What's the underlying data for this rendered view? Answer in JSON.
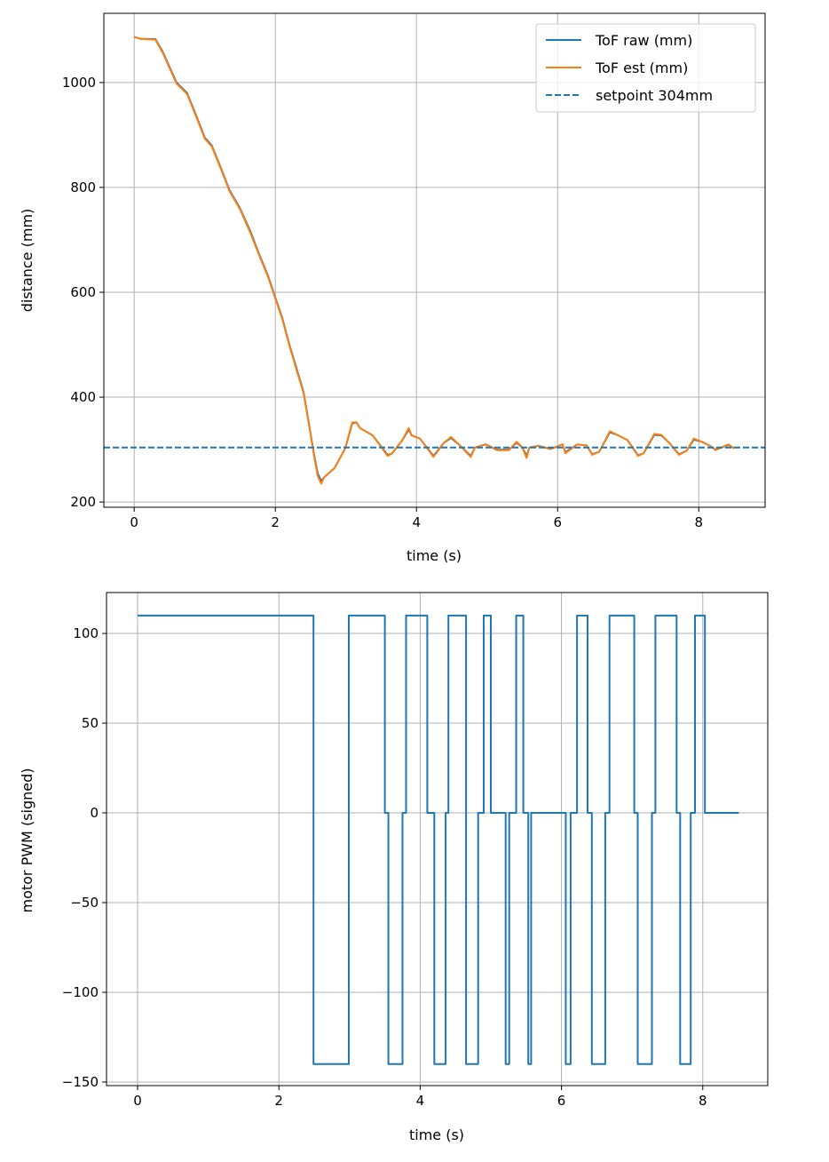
{
  "chart_data": [
    {
      "type": "line",
      "xlabel": "time (s)",
      "ylabel": "distance (mm)",
      "xlim": [
        -0.43,
        8.94
      ],
      "ylim": [
        190,
        1132
      ],
      "xticks": [
        0,
        2,
        4,
        6,
        8
      ],
      "yticks": [
        200,
        400,
        600,
        800,
        1000
      ],
      "grid": true,
      "legend_placement": "top-right",
      "x": [
        0,
        0.1,
        0.3,
        0.4,
        0.5,
        0.6,
        0.75,
        0.9,
        1.0,
        1.1,
        1.25,
        1.35,
        1.5,
        1.65,
        1.75,
        1.9,
        2.0,
        2.1,
        2.2,
        2.3,
        2.4,
        2.5,
        2.55,
        2.6,
        2.65,
        2.69,
        2.84,
        2.99,
        3.09,
        3.15,
        3.2,
        3.38,
        3.59,
        3.65,
        3.8,
        3.89,
        3.93,
        4.05,
        4.24,
        4.39,
        4.49,
        4.6,
        4.77,
        4.83,
        4.98,
        5.14,
        5.31,
        5.42,
        5.5,
        5.56,
        5.6,
        5.73,
        5.9,
        6.07,
        6.11,
        6.28,
        6.41,
        6.49,
        6.59,
        6.74,
        6.86,
        6.99,
        7.14,
        7.22,
        7.37,
        7.47,
        7.58,
        7.72,
        7.83,
        7.93,
        8.04,
        8.16,
        8.24,
        8.42,
        8.5
      ],
      "series": [
        {
          "name": "ToF raw (mm)",
          "color": "#1f77b4",
          "style": "solid",
          "values": [
            1087,
            1083,
            1083,
            1060,
            1030,
            1000,
            980,
            930,
            895,
            880,
            830,
            795,
            760,
            715,
            680,
            630,
            590,
            550,
            500,
            455,
            410,
            330,
            290,
            255,
            240,
            247,
            265,
            302,
            350,
            352,
            341,
            327,
            290,
            292,
            318,
            338,
            327,
            321,
            288,
            313,
            322,
            310,
            288,
            304,
            310,
            300,
            300,
            313,
            304,
            288,
            304,
            307,
            301,
            310,
            295,
            310,
            308,
            291,
            296,
            333,
            327,
            318,
            289,
            293,
            328,
            327,
            313,
            291,
            298,
            319,
            315,
            307,
            300,
            309,
            303
          ]
        },
        {
          "name": "ToF est (mm)",
          "color": "#ff7f0e",
          "style": "solid",
          "values": [
            1087,
            1083,
            1082,
            1058,
            1028,
            998,
            978,
            928,
            893,
            878,
            828,
            793,
            758,
            712,
            678,
            628,
            588,
            548,
            498,
            452,
            408,
            328,
            287,
            250,
            235,
            247,
            265,
            302,
            352,
            352,
            341,
            327,
            288,
            292,
            318,
            341,
            327,
            321,
            286,
            313,
            324,
            310,
            286,
            304,
            310,
            299,
            299,
            315,
            304,
            284,
            304,
            307,
            301,
            310,
            293,
            310,
            308,
            290,
            296,
            335,
            327,
            318,
            288,
            293,
            330,
            328,
            313,
            290,
            298,
            321,
            315,
            307,
            299,
            310,
            302
          ]
        },
        {
          "name": "setpoint 304mm",
          "color": "#1f77b4",
          "style": "dashed",
          "constant": 304
        }
      ]
    },
    {
      "type": "line",
      "step": true,
      "xlabel": "time (s)",
      "ylabel": "motor PWM (signed)",
      "xlim": [
        -0.44,
        8.92
      ],
      "ylim": [
        -152,
        122.8
      ],
      "xticks": [
        0,
        2,
        4,
        6,
        8
      ],
      "yticks": [
        100,
        50,
        0,
        -50,
        -100,
        -150
      ],
      "ytick_labels": [
        "100",
        "50",
        "0",
        "−50",
        "−100",
        "−150"
      ],
      "grid": true,
      "series": [
        {
          "color": "#1f77b4",
          "points": [
            [
              0,
              110
            ],
            [
              2.49,
              110
            ],
            [
              2.49,
              -140
            ],
            [
              2.99,
              -140
            ],
            [
              2.99,
              110
            ],
            [
              3.5,
              110
            ],
            [
              3.5,
              0
            ],
            [
              3.55,
              0
            ],
            [
              3.55,
              -140
            ],
            [
              3.75,
              -140
            ],
            [
              3.75,
              0
            ],
            [
              3.8,
              0
            ],
            [
              3.8,
              110
            ],
            [
              4.1,
              110
            ],
            [
              4.1,
              0
            ],
            [
              4.2,
              0
            ],
            [
              4.2,
              -140
            ],
            [
              4.36,
              -140
            ],
            [
              4.36,
              0
            ],
            [
              4.4,
              0
            ],
            [
              4.4,
              110
            ],
            [
              4.65,
              110
            ],
            [
              4.65,
              -140
            ],
            [
              4.82,
              -140
            ],
            [
              4.82,
              0
            ],
            [
              4.9,
              0
            ],
            [
              4.9,
              110
            ],
            [
              5.0,
              110
            ],
            [
              5.0,
              0
            ],
            [
              5.21,
              0
            ],
            [
              5.21,
              -140
            ],
            [
              5.26,
              -140
            ],
            [
              5.26,
              0
            ],
            [
              5.36,
              0
            ],
            [
              5.36,
              110
            ],
            [
              5.46,
              110
            ],
            [
              5.46,
              0
            ],
            [
              5.53,
              0
            ],
            [
              5.53,
              -140
            ],
            [
              5.57,
              -140
            ],
            [
              5.57,
              0
            ],
            [
              6.06,
              0
            ],
            [
              6.06,
              -140
            ],
            [
              6.13,
              -140
            ],
            [
              6.13,
              0
            ],
            [
              6.22,
              0
            ],
            [
              6.22,
              110
            ],
            [
              6.37,
              110
            ],
            [
              6.37,
              0
            ],
            [
              6.43,
              0
            ],
            [
              6.43,
              -140
            ],
            [
              6.62,
              -140
            ],
            [
              6.62,
              0
            ],
            [
              6.68,
              0
            ],
            [
              6.68,
              110
            ],
            [
              7.03,
              110
            ],
            [
              7.03,
              0
            ],
            [
              7.08,
              0
            ],
            [
              7.08,
              -140
            ],
            [
              7.28,
              -140
            ],
            [
              7.28,
              0
            ],
            [
              7.33,
              0
            ],
            [
              7.33,
              110
            ],
            [
              7.63,
              110
            ],
            [
              7.63,
              0
            ],
            [
              7.68,
              0
            ],
            [
              7.68,
              -140
            ],
            [
              7.83,
              -140
            ],
            [
              7.83,
              0
            ],
            [
              7.89,
              0
            ],
            [
              7.89,
              110
            ],
            [
              8.03,
              110
            ],
            [
              8.03,
              0
            ],
            [
              8.51,
              0
            ]
          ]
        }
      ]
    }
  ]
}
